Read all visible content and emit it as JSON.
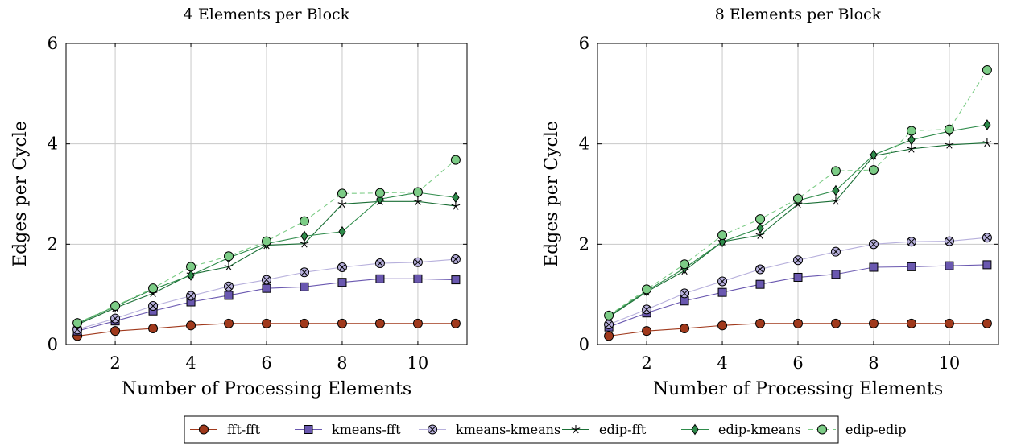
{
  "colors": {
    "fft-fft": "#a0391c",
    "kmeans-fft": "#6a58b0",
    "kmeans-kmeans": "#b7b0dc",
    "edip-fft": "#1a6e35",
    "edip-kmeans": "#2e8b4a",
    "edip-edip": "#7ccc86"
  },
  "legend": {
    "placement": "bottom-center",
    "entries": [
      {
        "key": "fft-fft",
        "label": "fft-fft",
        "marker": "circle",
        "dashed": false
      },
      {
        "key": "kmeans-fft",
        "label": "kmeans-fft",
        "marker": "square",
        "dashed": false
      },
      {
        "key": "kmeans-kmeans",
        "label": "kmeans-kmeans",
        "marker": "otimes",
        "dashed": false
      },
      {
        "key": "edip-fft",
        "label": "edip-fft",
        "marker": "star",
        "dashed": false
      },
      {
        "key": "edip-kmeans",
        "label": "edip-kmeans",
        "marker": "diamond",
        "dashed": false
      },
      {
        "key": "edip-edip",
        "label": "edip-edip",
        "marker": "circle",
        "dashed": true
      }
    ]
  },
  "chart_data": [
    {
      "type": "line",
      "title": "4 Elements per Block",
      "xlabel": "Number of Processing Elements",
      "ylabel": "Edges per Cycle",
      "xlim": [
        0.7,
        11.3
      ],
      "ylim": [
        0,
        6
      ],
      "xticks": [
        2,
        4,
        6,
        8,
        10
      ],
      "yticks": [
        0,
        2,
        4,
        6
      ],
      "grid": true,
      "x": [
        1,
        2,
        3,
        4,
        5,
        6,
        7,
        8,
        9,
        10,
        11
      ],
      "series": [
        {
          "name": "fft-fft",
          "values": [
            0.17,
            0.27,
            0.32,
            0.38,
            0.42,
            0.42,
            0.42,
            0.42,
            0.42,
            0.42,
            0.42
          ]
        },
        {
          "name": "kmeans-fft",
          "values": [
            0.27,
            0.47,
            0.67,
            0.85,
            0.98,
            1.12,
            1.15,
            1.24,
            1.31,
            1.31,
            1.29
          ]
        },
        {
          "name": "kmeans-kmeans",
          "values": [
            0.3,
            0.52,
            0.77,
            0.97,
            1.16,
            1.29,
            1.44,
            1.54,
            1.62,
            1.64,
            1.7
          ]
        },
        {
          "name": "edip-fft",
          "values": [
            0.4,
            0.73,
            1.02,
            1.4,
            1.55,
            1.98,
            2.01,
            2.8,
            2.85,
            2.85,
            2.76
          ]
        },
        {
          "name": "edip-kmeans",
          "values": [
            0.42,
            0.76,
            1.1,
            1.38,
            1.73,
            2.01,
            2.16,
            2.25,
            2.9,
            3.03,
            2.93
          ]
        },
        {
          "name": "edip-edip",
          "values": [
            0.43,
            0.77,
            1.12,
            1.55,
            1.76,
            2.06,
            2.46,
            3.01,
            3.02,
            3.04,
            3.68
          ]
        }
      ]
    },
    {
      "type": "line",
      "title": "8 Elements per Block",
      "xlabel": "Number of Processing Elements",
      "ylabel": "Edges per Cycle",
      "xlim": [
        0.7,
        11.3
      ],
      "ylim": [
        0,
        6
      ],
      "xticks": [
        2,
        4,
        6,
        8,
        10
      ],
      "yticks": [
        0,
        2,
        4,
        6
      ],
      "grid": true,
      "x": [
        1,
        2,
        3,
        4,
        5,
        6,
        7,
        8,
        9,
        10,
        11
      ],
      "series": [
        {
          "name": "fft-fft",
          "values": [
            0.17,
            0.27,
            0.32,
            0.38,
            0.42,
            0.42,
            0.42,
            0.42,
            0.42,
            0.42,
            0.42
          ]
        },
        {
          "name": "kmeans-fft",
          "values": [
            0.35,
            0.63,
            0.87,
            1.04,
            1.2,
            1.34,
            1.4,
            1.54,
            1.55,
            1.57,
            1.59
          ]
        },
        {
          "name": "kmeans-kmeans",
          "values": [
            0.4,
            0.7,
            1.02,
            1.26,
            1.5,
            1.68,
            1.85,
            2.0,
            2.05,
            2.06,
            2.13
          ]
        },
        {
          "name": "edip-fft",
          "values": [
            0.55,
            1.05,
            1.47,
            2.05,
            2.18,
            2.8,
            2.86,
            3.76,
            3.9,
            3.98,
            4.02
          ]
        },
        {
          "name": "edip-kmeans",
          "values": [
            0.57,
            1.07,
            1.52,
            2.05,
            2.32,
            2.87,
            3.07,
            3.78,
            4.08,
            4.25,
            4.38
          ]
        },
        {
          "name": "edip-edip",
          "values": [
            0.58,
            1.1,
            1.6,
            2.18,
            2.5,
            2.91,
            3.46,
            3.48,
            4.26,
            4.29,
            5.47
          ]
        }
      ]
    }
  ]
}
